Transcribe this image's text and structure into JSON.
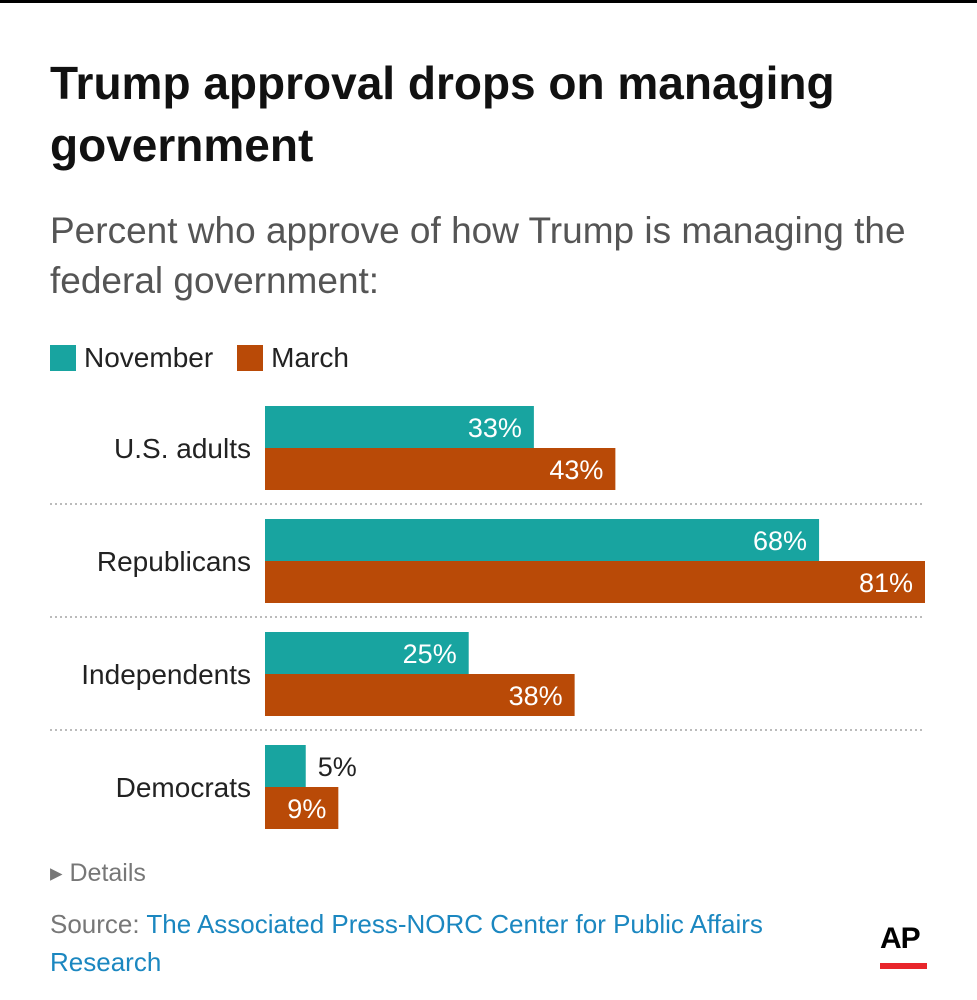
{
  "title": "Trump approval drops on managing government",
  "subtitle": "Percent who approve of how Trump is managing the federal government:",
  "details_label": "Details",
  "source_label": "Source:",
  "source_link": "The Associated Press-NORC Center for Public Affairs Research",
  "logo_text": "AP",
  "chart_data": {
    "type": "bar",
    "orientation": "horizontal",
    "categories": [
      "U.S. adults",
      "Republicans",
      "Independents",
      "Democrats"
    ],
    "series": [
      {
        "name": "November",
        "values": [
          33,
          68,
          25,
          5
        ],
        "color": "#18a4a0"
      },
      {
        "name": "March",
        "values": [
          43,
          81,
          38,
          9
        ],
        "color": "#b94a07"
      }
    ],
    "value_suffix": "%",
    "xlim": [
      0,
      81
    ],
    "legend": "top-left",
    "grid": false
  }
}
